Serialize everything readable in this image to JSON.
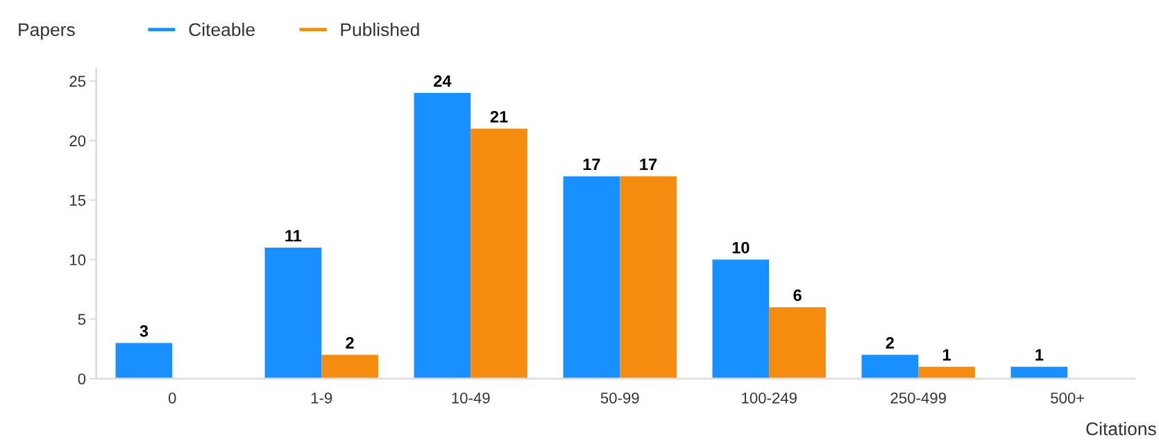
{
  "chart_data": {
    "type": "bar",
    "xlabel": "Citations",
    "ylabel": "Papers",
    "categories": [
      "0",
      "1-9",
      "10-49",
      "50-99",
      "100-249",
      "250-499",
      "500+"
    ],
    "series": [
      {
        "name": "Citeable",
        "color": "#1890ff",
        "values": [
          3,
          11,
          24,
          17,
          10,
          2,
          1
        ]
      },
      {
        "name": "Published",
        "color": "#f68c0f",
        "values": [
          null,
          2,
          21,
          17,
          6,
          1,
          null
        ]
      }
    ],
    "ylim": [
      0,
      26
    ],
    "yticks": [
      0,
      5,
      10,
      15,
      20,
      25
    ],
    "grid": false,
    "legend": "top",
    "data_labels": true
  }
}
